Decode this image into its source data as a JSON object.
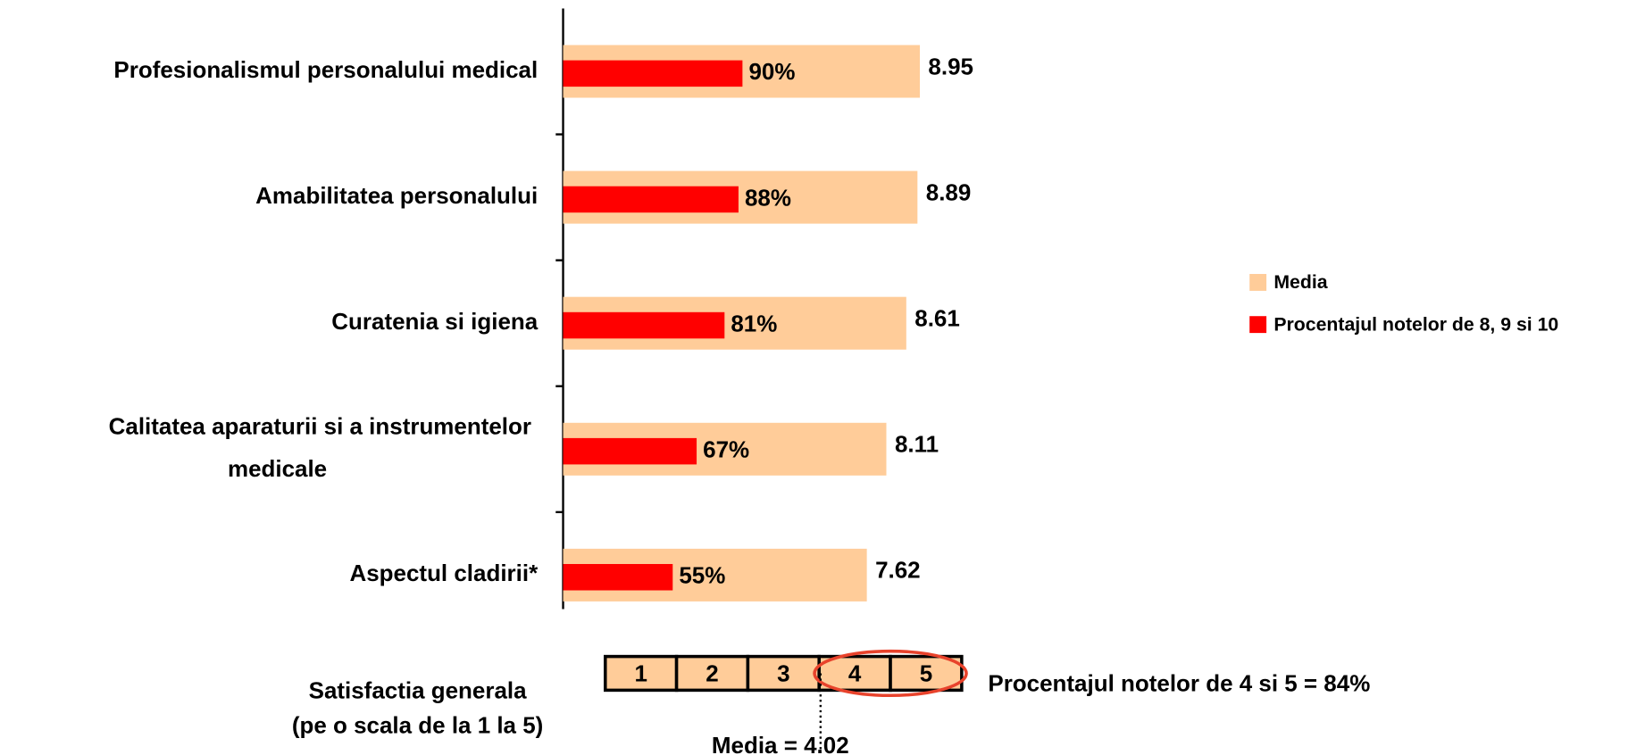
{
  "chart_data": {
    "type": "bar",
    "orientation": "horizontal",
    "categories": [
      "Profesionalismul personalului medical",
      "Amabilitatea personalului",
      "Curatenia si igiena",
      "Calitatea aparaturii si a instrumentelor medicale",
      "Aspectul cladirii*"
    ],
    "series": [
      {
        "name": "Media",
        "color": "#FFCC99",
        "values": [
          8.95,
          8.89,
          8.61,
          8.11,
          7.62
        ]
      },
      {
        "name": "Procentajul notelor de 8, 9 si 10",
        "color": "#FF0000",
        "axis": "x2",
        "values": [
          90,
          88,
          81,
          67,
          55
        ],
        "value_labels": [
          "90%",
          "88%",
          "81%",
          "67%",
          "55%"
        ]
      }
    ],
    "xlim": [
      0,
      10
    ],
    "x2lim": [
      0,
      200
    ],
    "legend": "right"
  },
  "general_satisfaction": {
    "label": "Satisfactia generala",
    "sublabel": "(pe o scala de la 1 la 5)",
    "scale": [
      1,
      2,
      3,
      4,
      5
    ],
    "top_box_text": "Procentajul notelor de 4 si 5 = 84%",
    "mean": 4.02,
    "mean_text": "Media = 4.02"
  }
}
